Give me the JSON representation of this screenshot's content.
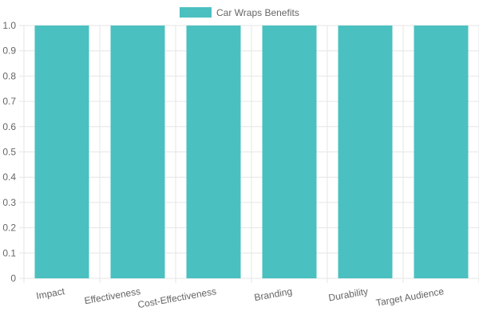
{
  "chart_data": {
    "type": "bar",
    "categories": [
      "Impact",
      "Effectiveness",
      "Cost-Effectiveness",
      "Branding",
      "Durability",
      "Target Audience"
    ],
    "series": [
      {
        "name": "Car Wraps Benefits",
        "values": [
          1,
          1,
          1,
          1,
          1,
          1
        ]
      }
    ],
    "ylim": [
      0,
      1
    ],
    "yticks": [
      "0",
      "0.1",
      "0.2",
      "0.3",
      "0.4",
      "0.5",
      "0.6",
      "0.7",
      "0.8",
      "0.9",
      "1.0"
    ],
    "grid": true,
    "legend_position": "top",
    "colors": {
      "bar": "#4bc0c0",
      "grid": "#e6e6e6",
      "tick_text": "#666666"
    }
  }
}
